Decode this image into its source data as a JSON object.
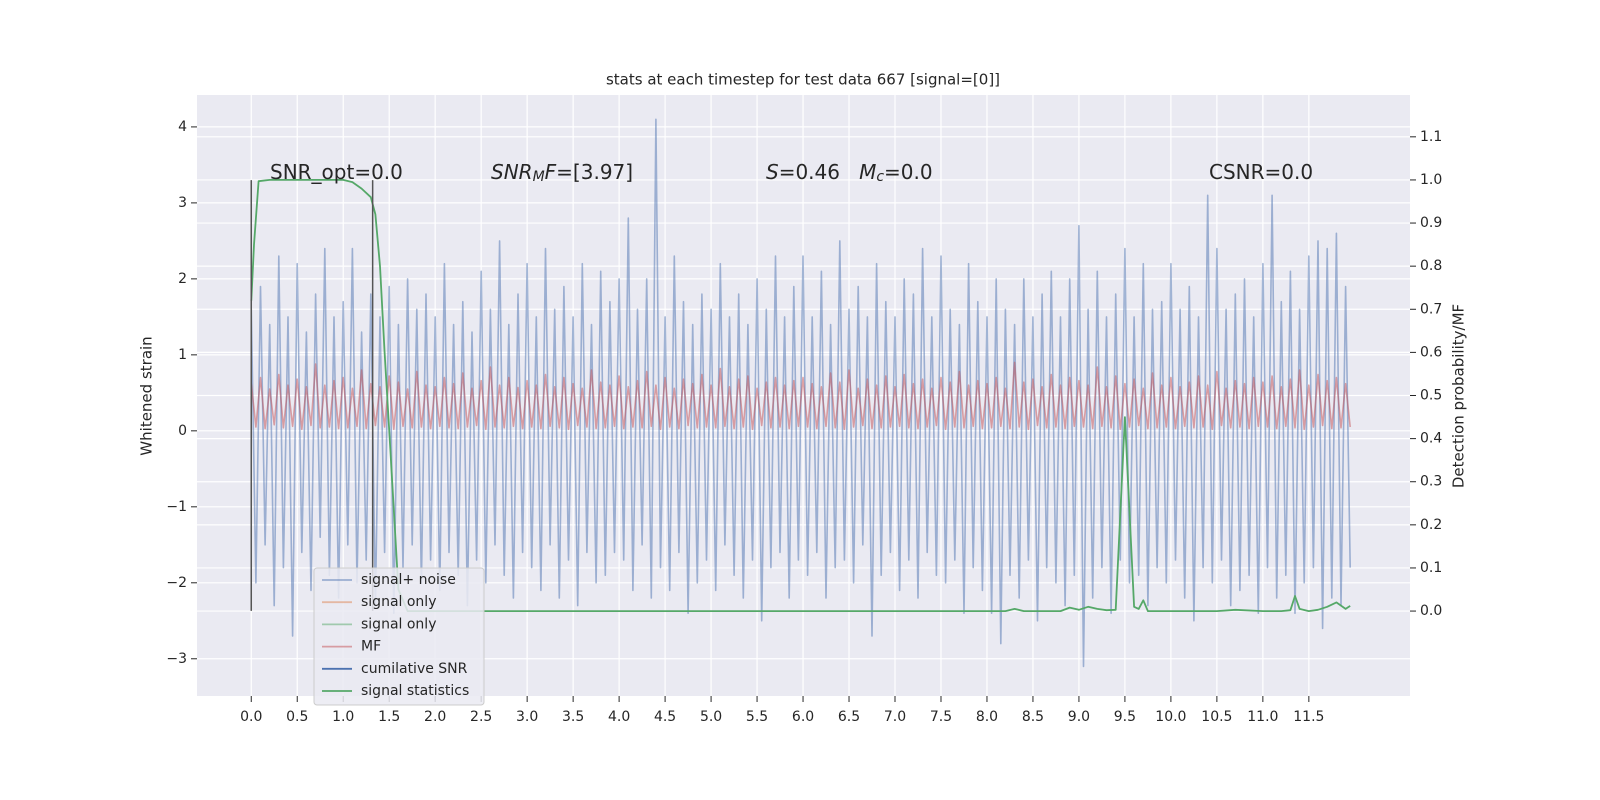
{
  "chart_data": {
    "type": "line",
    "title": "stats at each timestep for test data 667 [signal=[0]]",
    "ylabel": "Whitened strain",
    "y2label": "Detection probability/MF",
    "xlim": [
      -0.59,
      12.6
    ],
    "ylim": [
      -3.49,
      4.42
    ],
    "y2lim": [
      -0.197,
      1.197
    ],
    "xticks": [
      {
        "value": 0,
        "label": "0.0"
      },
      {
        "value": 0.5,
        "label": "0.5"
      },
      {
        "value": 1,
        "label": "1.0"
      },
      {
        "value": 1.5,
        "label": "1.5"
      },
      {
        "value": 2,
        "label": "2.0"
      },
      {
        "value": 2.5,
        "label": "2.5"
      },
      {
        "value": 3,
        "label": "3.0"
      },
      {
        "value": 3.5,
        "label": "3.5"
      },
      {
        "value": 4,
        "label": "4.0"
      },
      {
        "value": 4.5,
        "label": "4.5"
      },
      {
        "value": 5,
        "label": "5.0"
      },
      {
        "value": 5.5,
        "label": "5.5"
      },
      {
        "value": 6,
        "label": "6.0"
      },
      {
        "value": 6.5,
        "label": "6.5"
      },
      {
        "value": 7,
        "label": "7.0"
      },
      {
        "value": 7.5,
        "label": "7.5"
      },
      {
        "value": 8,
        "label": "8.0"
      },
      {
        "value": 8.5,
        "label": "8.5"
      },
      {
        "value": 9,
        "label": "9.0"
      },
      {
        "value": 9.5,
        "label": "9.5"
      },
      {
        "value": 10,
        "label": "10.0"
      },
      {
        "value": 10.5,
        "label": "10.5"
      },
      {
        "value": 11,
        "label": "11.0"
      },
      {
        "value": 11.5,
        "label": "11.5"
      }
    ],
    "yticks": [
      {
        "value": -3,
        "label": "−3"
      },
      {
        "value": -2,
        "label": "−2"
      },
      {
        "value": -1,
        "label": "−1"
      },
      0,
      1,
      2,
      3,
      4
    ],
    "y2ticks": [
      {
        "value": 0,
        "label": "0.0"
      },
      {
        "value": 0.1,
        "label": "0.1"
      },
      {
        "value": 0.2,
        "label": "0.2"
      },
      {
        "value": 0.3,
        "label": "0.3"
      },
      {
        "value": 0.4,
        "label": "0.4"
      },
      {
        "value": 0.5,
        "label": "0.5"
      },
      {
        "value": 0.6,
        "label": "0.6"
      },
      {
        "value": 0.7,
        "label": "0.7"
      },
      {
        "value": 0.8,
        "label": "0.8"
      },
      {
        "value": 0.9,
        "label": "0.9"
      },
      {
        "value": 1.0,
        "label": "1.0"
      },
      {
        "value": 1.1,
        "label": "1.1"
      }
    ],
    "grid": true,
    "legend": "lower left",
    "vlines": [
      {
        "x": 0,
        "ymin": -2.37,
        "ymax": 3.3,
        "color": "#555555"
      },
      {
        "x": 1.32,
        "ymin": -2.37,
        "ymax": 3.3,
        "color": "#555555"
      }
    ],
    "annotations": [
      {
        "segments": [
          {
            "text": "SNR_opt=0.0"
          }
        ]
      },
      {
        "segments": [
          {
            "text": "SNR",
            "italic": true
          },
          {
            "text": "M",
            "italic": true,
            "sub": true
          },
          {
            "text": "F",
            "italic": true
          },
          {
            "text": "=[3.97]"
          }
        ]
      },
      {
        "segments": [
          {
            "text": "S",
            "italic": true
          },
          {
            "text": "=0.46   "
          },
          {
            "text": "M",
            "italic": true
          },
          {
            "text": "c",
            "italic": true,
            "sub": true
          },
          {
            "text": "=0.0"
          }
        ]
      },
      {
        "segments": [
          {
            "text": "CSNR=0.0"
          }
        ]
      }
    ],
    "x": [
      0,
      0.05,
      0.1,
      0.15,
      0.2,
      0.25,
      0.3,
      0.35,
      0.4,
      0.45,
      0.5,
      0.55,
      0.6,
      0.65,
      0.7,
      0.75,
      0.8,
      0.85,
      0.9,
      0.95,
      1,
      1.05,
      1.1,
      1.15,
      1.2,
      1.25,
      1.3,
      1.35,
      1.4,
      1.45,
      1.5,
      1.55,
      1.6,
      1.65,
      1.7,
      1.75,
      1.8,
      1.85,
      1.9,
      1.95,
      2,
      2.05,
      2.1,
      2.15,
      2.2,
      2.25,
      2.3,
      2.35,
      2.4,
      2.45,
      2.5,
      2.55,
      2.6,
      2.65,
      2.7,
      2.75,
      2.8,
      2.85,
      2.9,
      2.95,
      3,
      3.05,
      3.1,
      3.15,
      3.2,
      3.25,
      3.3,
      3.35,
      3.4,
      3.45,
      3.5,
      3.55,
      3.6,
      3.65,
      3.7,
      3.75,
      3.8,
      3.85,
      3.9,
      3.95,
      4,
      4.05,
      4.1,
      4.15,
      4.2,
      4.25,
      4.3,
      4.35,
      4.4,
      4.45,
      4.5,
      4.55,
      4.6,
      4.65,
      4.7,
      4.75,
      4.8,
      4.85,
      4.9,
      4.95,
      5,
      5.05,
      5.1,
      5.15,
      5.2,
      5.25,
      5.3,
      5.35,
      5.4,
      5.45,
      5.5,
      5.55,
      5.6,
      5.65,
      5.7,
      5.75,
      5.8,
      5.85,
      5.9,
      5.95,
      6,
      6.05,
      6.1,
      6.15,
      6.2,
      6.25,
      6.3,
      6.35,
      6.4,
      6.45,
      6.5,
      6.55,
      6.6,
      6.65,
      6.7,
      6.75,
      6.8,
      6.85,
      6.9,
      6.95,
      7,
      7.05,
      7.1,
      7.15,
      7.2,
      7.25,
      7.3,
      7.35,
      7.4,
      7.45,
      7.5,
      7.55,
      7.6,
      7.65,
      7.7,
      7.75,
      7.8,
      7.85,
      7.9,
      7.95,
      8,
      8.05,
      8.1,
      8.15,
      8.2,
      8.25,
      8.3,
      8.35,
      8.4,
      8.45,
      8.5,
      8.55,
      8.6,
      8.65,
      8.7,
      8.75,
      8.8,
      8.85,
      8.9,
      8.95,
      9,
      9.05,
      9.1,
      9.15,
      9.2,
      9.25,
      9.3,
      9.35,
      9.4,
      9.45,
      9.5,
      9.55,
      9.6,
      9.65,
      9.7,
      9.75,
      9.8,
      9.85,
      9.9,
      9.95,
      10,
      10.05,
      10.1,
      10.15,
      10.2,
      10.25,
      10.3,
      10.35,
      10.4,
      10.45,
      10.5,
      10.55,
      10.6,
      10.65,
      10.7,
      10.75,
      10.8,
      10.85,
      10.9,
      10.95,
      11,
      11.05,
      11.1,
      11.15,
      11.2,
      11.25,
      11.3,
      11.35,
      11.4,
      11.45,
      11.5,
      11.55,
      11.6,
      11.65,
      11.7,
      11.75,
      11.8,
      11.85,
      11.9,
      11.95
    ],
    "series": [
      {
        "name": "signal+ noise",
        "color": "#4c72b0",
        "alpha": 0.5,
        "values": [
          1.6,
          -2.0,
          1.9,
          -1.5,
          1.4,
          -2.3,
          2.3,
          -1.8,
          1.5,
          -2.7,
          2.2,
          -1.6,
          1.3,
          -2.1,
          1.8,
          -1.4,
          2.4,
          -1.9,
          1.5,
          -2.2,
          1.7,
          -1.5,
          2.4,
          -2.0,
          1.3,
          -1.7,
          1.8,
          -2.3,
          1.5,
          -1.6,
          1.9,
          -2.4,
          1.4,
          -1.8,
          2.0,
          -1.5,
          1.6,
          -2.0,
          1.8,
          -1.7,
          1.5,
          -2.1,
          2.2,
          -1.6,
          1.4,
          -1.9,
          1.7,
          -2.3,
          1.3,
          -1.7,
          2.1,
          -2.0,
          1.6,
          -1.5,
          2.5,
          -1.9,
          1.4,
          -2.2,
          1.8,
          -1.6,
          2.2,
          -1.8,
          1.5,
          -2.1,
          2.4,
          -1.5,
          1.6,
          -2.2,
          1.9,
          -1.7,
          1.5,
          -2.3,
          2.2,
          -1.6,
          1.4,
          -2.0,
          2.1,
          -1.9,
          1.7,
          -1.6,
          2.0,
          -1.7,
          2.8,
          -2.1,
          1.6,
          -1.5,
          2.0,
          -2.2,
          4.1,
          -1.8,
          1.5,
          -2.1,
          2.3,
          -1.6,
          1.7,
          -2.4,
          1.4,
          -2.0,
          1.8,
          -1.7,
          1.6,
          -2.1,
          2.2,
          -1.5,
          1.5,
          -1.9,
          1.8,
          -2.2,
          1.4,
          -1.7,
          2.0,
          -2.5,
          1.6,
          -1.8,
          2.3,
          -1.6,
          1.5,
          -2.2,
          1.9,
          -1.7,
          2.3,
          -1.9,
          1.5,
          -1.6,
          2.1,
          -2.2,
          1.4,
          -1.8,
          2.5,
          -1.7,
          1.6,
          -2.0,
          1.9,
          -1.5,
          1.5,
          -2.7,
          2.2,
          -1.9,
          1.7,
          -1.6,
          1.5,
          -2.1,
          2.0,
          -1.7,
          1.8,
          -2.2,
          2.4,
          -1.6,
          1.5,
          -1.9,
          2.3,
          -2.0,
          1.6,
          -1.7,
          1.4,
          -2.4,
          2.2,
          -1.8,
          1.7,
          -2.1,
          1.5,
          -2.4,
          2.0,
          -2.8,
          1.6,
          -1.9,
          1.4,
          -2.2,
          2.0,
          -1.7,
          1.5,
          -2.5,
          1.8,
          -1.8,
          2.1,
          -2.0,
          1.5,
          -2.3,
          2.0,
          -1.9,
          2.7,
          -3.1,
          1.6,
          -2.2,
          2.1,
          -1.8,
          1.5,
          -2.4,
          1.8,
          -1.7,
          2.4,
          -2.0,
          1.5,
          -1.9,
          2.2,
          -2.3,
          1.6,
          -1.8,
          1.7,
          -2.0,
          2.2,
          -1.7,
          1.6,
          -2.2,
          1.9,
          -2.5,
          1.5,
          -1.8,
          3.1,
          -2.0,
          2.4,
          -1.7,
          1.6,
          -2.3,
          1.8,
          -2.1,
          2.0,
          -1.9,
          1.5,
          -2.4,
          2.2,
          -1.8,
          3.1,
          -2.2,
          1.7,
          -1.9,
          2.1,
          -2.4,
          1.6,
          -2.0,
          2.3,
          -1.8,
          2.5,
          -2.6,
          2.4,
          -2.2,
          2.6,
          -2.3,
          1.9,
          -1.8
        ]
      },
      {
        "name": "signal only",
        "color": "#dd8452",
        "alpha": 0.5
      },
      {
        "name": "signal only",
        "color": "#55a868",
        "alpha": 0.5
      },
      {
        "name": "MF",
        "color": "#c44e52",
        "alpha": 0.5,
        "values": [
          0.62,
          0.05,
          0.7,
          0.03,
          0.55,
          0.08,
          0.74,
          0.04,
          0.6,
          0.06,
          0.68,
          0.02,
          0.58,
          0.07,
          0.88,
          0.04,
          0.6,
          0.05,
          0.66,
          0.03,
          0.7,
          0.04,
          0.56,
          0.06,
          0.8,
          0.03,
          0.62,
          0.07,
          0.58,
          0.05,
          0.72,
          0.02,
          0.64,
          0.06,
          0.55,
          0.04,
          0.78,
          0.05,
          0.6,
          0.03,
          0.58,
          0.06,
          0.7,
          0.04,
          0.62,
          0.03,
          0.76,
          0.05,
          0.56,
          0.07,
          0.66,
          0.02,
          0.84,
          0.05,
          0.6,
          0.04,
          0.7,
          0.06,
          0.57,
          0.03,
          0.66,
          0.05,
          0.6,
          0.03,
          0.74,
          0.06,
          0.58,
          0.04,
          0.7,
          0.02,
          0.62,
          0.07,
          0.56,
          0.05,
          0.8,
          0.03,
          0.64,
          0.04,
          0.6,
          0.06,
          0.72,
          0.03,
          0.58,
          0.05,
          0.66,
          0.04,
          0.78,
          0.06,
          0.6,
          0.02,
          0.7,
          0.05,
          0.56,
          0.03,
          0.68,
          0.07,
          0.62,
          0.04,
          0.74,
          0.05,
          0.6,
          0.04,
          0.82,
          0.06,
          0.58,
          0.03,
          0.68,
          0.05,
          0.72,
          0.02,
          0.56,
          0.07,
          0.64,
          0.04,
          0.7,
          0.05,
          0.6,
          0.03,
          0.66,
          0.06,
          0.7,
          0.05,
          0.62,
          0.03,
          0.58,
          0.06,
          0.76,
          0.04,
          0.64,
          0.02,
          0.8,
          0.05,
          0.56,
          0.07,
          0.68,
          0.03,
          0.6,
          0.04,
          0.72,
          0.05,
          0.58,
          0.06,
          0.74,
          0.04,
          0.62,
          0.03,
          0.68,
          0.05,
          0.56,
          0.07,
          0.7,
          0.02,
          0.64,
          0.05,
          0.78,
          0.04,
          0.6,
          0.06,
          0.66,
          0.03,
          0.62,
          0.04,
          0.7,
          0.06,
          0.56,
          0.03,
          0.9,
          0.05,
          0.64,
          0.02,
          0.68,
          0.07,
          0.58,
          0.04,
          0.74,
          0.05,
          0.6,
          0.03,
          0.7,
          0.06,
          0.66,
          0.05,
          0.6,
          0.03,
          0.84,
          0.06,
          0.58,
          0.04,
          0.72,
          0.02,
          0.62,
          0.05,
          0.68,
          0.07,
          0.56,
          0.03,
          0.76,
          0.04,
          0.6,
          0.05,
          0.7,
          0.03,
          0.58,
          0.06,
          0.64,
          0.04,
          0.72,
          0.05,
          0.6,
          0.02,
          0.78,
          0.07,
          0.56,
          0.04,
          0.66,
          0.05,
          0.62,
          0.03,
          0.7,
          0.06,
          0.64,
          0.05,
          0.72,
          0.03,
          0.58,
          0.06,
          0.68,
          0.04,
          0.8,
          0.02,
          0.6,
          0.05,
          0.74,
          0.07,
          0.66,
          0.03,
          0.7,
          0.04,
          0.62,
          0.05
        ]
      },
      {
        "name": "cumilative SNR",
        "color": "#4c72b0",
        "alpha": 1
      },
      {
        "name": "signal statistics",
        "color": "#55a868",
        "alpha": 1,
        "axis": "y2",
        "x": [
          0,
          0.03,
          0.08,
          0.2,
          0.4,
          0.6,
          0.8,
          1.0,
          1.1,
          1.2,
          1.3,
          1.35,
          1.4,
          1.45,
          1.5,
          1.6,
          1.7,
          2.0,
          8.2,
          8.3,
          8.4,
          8.6,
          8.8,
          8.9,
          9.0,
          9.1,
          9.2,
          9.3,
          9.4,
          9.5,
          9.6,
          9.65,
          9.7,
          9.75,
          9.8,
          10.0,
          10.5,
          10.7,
          11.0,
          11.2,
          11.3,
          11.35,
          11.4,
          11.5,
          11.6,
          11.7,
          11.8,
          11.9,
          11.95
        ],
        "values": [
          0.72,
          0.85,
          0.997,
          1.0,
          1.0,
          1.0,
          1.0,
          1.0,
          0.995,
          0.98,
          0.96,
          0.92,
          0.8,
          0.6,
          0.42,
          0.05,
          0.0,
          0.0,
          0.0,
          0.005,
          0.0,
          0.0,
          0.0,
          0.008,
          0.003,
          0.01,
          0.005,
          0.002,
          0.003,
          0.45,
          0.01,
          0.005,
          0.025,
          0.0,
          0.0,
          0.0,
          0.0,
          0.003,
          0.0,
          0.0,
          0.002,
          0.035,
          0.005,
          0.0,
          0.003,
          0.01,
          0.02,
          0.005,
          0.012
        ]
      }
    ]
  }
}
